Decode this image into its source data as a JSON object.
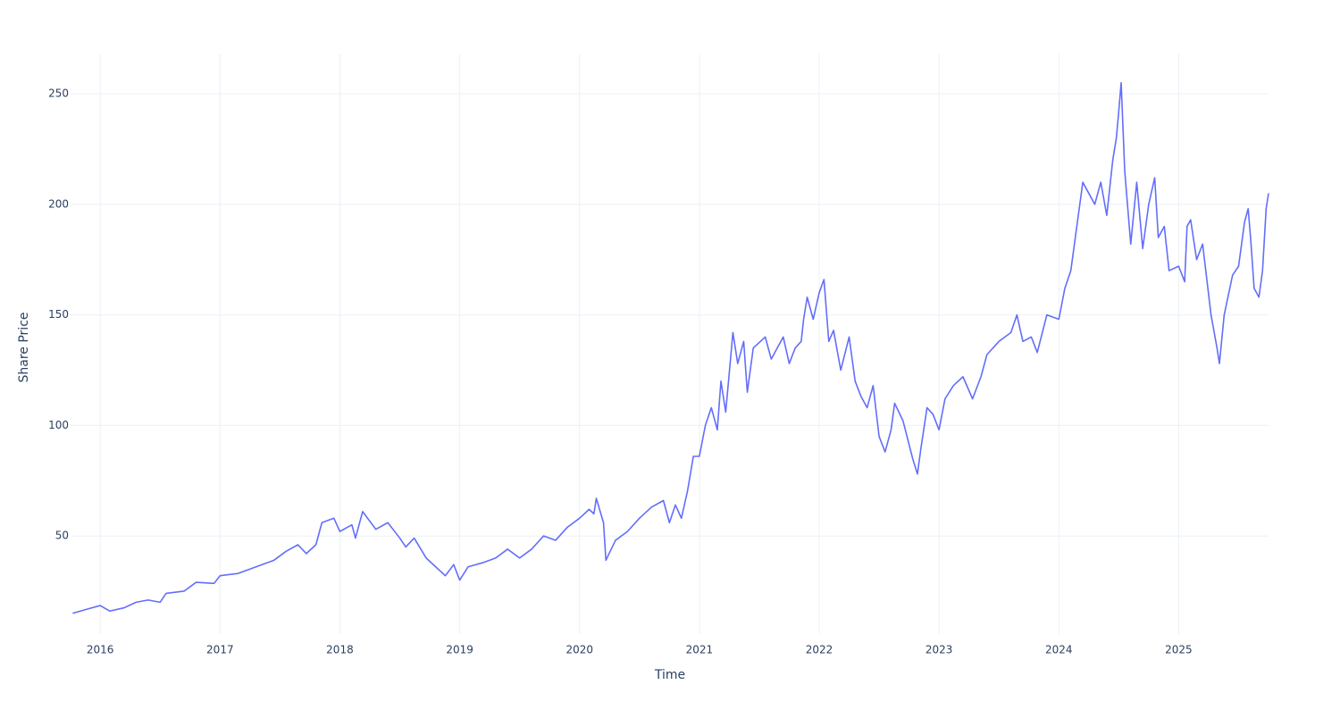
{
  "chart_data": {
    "type": "line",
    "x_label": "Time",
    "y_label": "Share Price",
    "xlim": [
      2015.76,
      2025.75
    ],
    "xticks": [
      2016,
      2017,
      2018,
      2019,
      2020,
      2021,
      2022,
      2023,
      2024,
      2025
    ],
    "ylim": [
      5.6,
      268.2
    ],
    "yticks": [
      50,
      100,
      150,
      200,
      250
    ],
    "grid": true,
    "series": [
      {
        "color": "#636efa",
        "x": [
          2015.77,
          2015.9,
          2016.0,
          2016.08,
          2016.2,
          2016.3,
          2016.4,
          2016.5,
          2016.55,
          2016.7,
          2016.8,
          2016.95,
          2017.0,
          2017.15,
          2017.3,
          2017.45,
          2017.55,
          2017.65,
          2017.72,
          2017.8,
          2017.85,
          2017.95,
          2018.0,
          2018.1,
          2018.13,
          2018.19,
          2018.3,
          2018.4,
          2018.5,
          2018.55,
          2018.62,
          2018.72,
          2018.8,
          2018.88,
          2018.95,
          2019.0,
          2019.07,
          2019.2,
          2019.3,
          2019.4,
          2019.5,
          2019.6,
          2019.7,
          2019.8,
          2019.9,
          2020.0,
          2020.08,
          2020.12,
          2020.14,
          2020.2,
          2020.22,
          2020.3,
          2020.4,
          2020.5,
          2020.6,
          2020.7,
          2020.75,
          2020.8,
          2020.85,
          2020.9,
          2020.95,
          2021.0,
          2021.05,
          2021.1,
          2021.15,
          2021.18,
          2021.22,
          2021.28,
          2021.32,
          2021.37,
          2021.4,
          2021.45,
          2021.55,
          2021.6,
          2021.7,
          2021.75,
          2021.8,
          2021.85,
          2021.87,
          2021.9,
          2021.95,
          2022.0,
          2022.04,
          2022.08,
          2022.12,
          2022.18,
          2022.25,
          2022.3,
          2022.35,
          2022.4,
          2022.45,
          2022.5,
          2022.55,
          2022.6,
          2022.63,
          2022.7,
          2022.78,
          2022.82,
          2022.85,
          2022.9,
          2022.95,
          2023.0,
          2023.05,
          2023.12,
          2023.2,
          2023.28,
          2023.35,
          2023.4,
          2023.5,
          2023.6,
          2023.65,
          2023.7,
          2023.77,
          2023.82,
          2023.9,
          2024.0,
          2024.05,
          2024.1,
          2024.15,
          2024.2,
          2024.3,
          2024.35,
          2024.4,
          2024.45,
          2024.48,
          2024.5,
          2024.52,
          2024.55,
          2024.6,
          2024.65,
          2024.7,
          2024.75,
          2024.8,
          2024.83,
          2024.88,
          2024.92,
          2025.0,
          2025.05,
          2025.07,
          2025.1,
          2025.15,
          2025.2,
          2025.27,
          2025.32,
          2025.34,
          2025.38,
          2025.45,
          2025.5,
          2025.55,
          2025.58,
          2025.6,
          2025.63,
          2025.67,
          2025.7,
          2025.73,
          2025.75
        ],
        "values": [
          15,
          17,
          18.5,
          16,
          17.5,
          20,
          21,
          20,
          24,
          25,
          29,
          28.5,
          32,
          33,
          36,
          39,
          43,
          46,
          42,
          46,
          56,
          58,
          52,
          55,
          49,
          61,
          53,
          56,
          49,
          45,
          49,
          40,
          36,
          32,
          37,
          30,
          36,
          38,
          40,
          44,
          40,
          44,
          50,
          48,
          54,
          58,
          62,
          60,
          67,
          56,
          39,
          48,
          52,
          58,
          63,
          66,
          56,
          64,
          58,
          70,
          86,
          86,
          100,
          108,
          98,
          120,
          106,
          142,
          128,
          138,
          115,
          135,
          140,
          130,
          140,
          128,
          135,
          138,
          148,
          158,
          148,
          160,
          166,
          138,
          143,
          125,
          140,
          120,
          113,
          108,
          118,
          95,
          88,
          98,
          110,
          102,
          85,
          78,
          90,
          108,
          105,
          98,
          112,
          118,
          122,
          112,
          122,
          132,
          138,
          142,
          150,
          138,
          140,
          133,
          150,
          148,
          162,
          170,
          190,
          210,
          200,
          210,
          195,
          220,
          230,
          242,
          255,
          215,
          182,
          210,
          180,
          200,
          212,
          185,
          190,
          170,
          172,
          165,
          190,
          193,
          175,
          182,
          150,
          135,
          128,
          150,
          168,
          172,
          192,
          198,
          185,
          162,
          158,
          170,
          198,
          205
        ]
      }
    ]
  }
}
